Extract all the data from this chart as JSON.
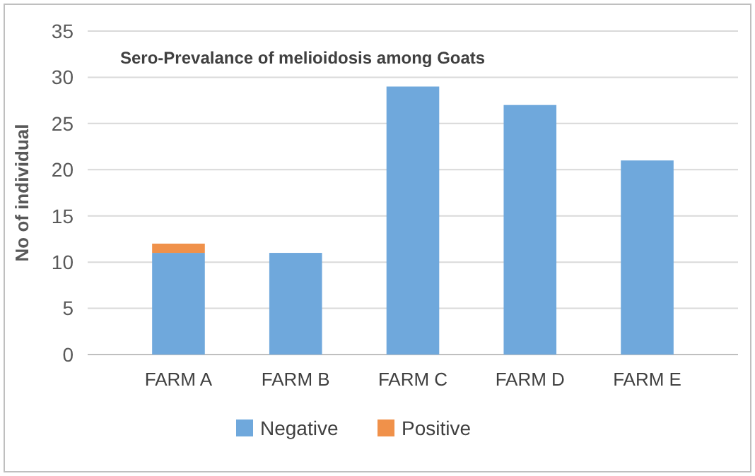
{
  "chart_data": {
    "type": "bar",
    "title": "Sero-Prevalance of melioidosis  among Goats",
    "ylabel": "No of individual",
    "categories": [
      "FARM A",
      "FARM B",
      "FARM C",
      "FARM D",
      "FARM E"
    ],
    "stacked": true,
    "series": [
      {
        "name": "Negative",
        "color": "#6fa8dc",
        "values": [
          11,
          11,
          29,
          27,
          21
        ]
      },
      {
        "name": "Positive",
        "color": "#f0914a",
        "values": [
          1,
          0,
          0,
          0,
          0
        ]
      }
    ],
    "ylim": [
      0,
      35
    ],
    "yticks": [
      0,
      5,
      10,
      15,
      20,
      25,
      30,
      35
    ],
    "grid": "y",
    "legend": "bottom"
  }
}
